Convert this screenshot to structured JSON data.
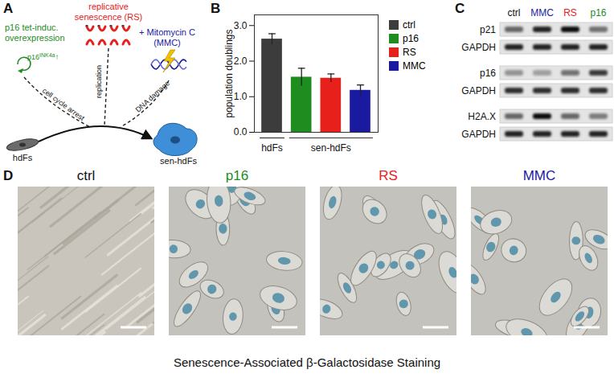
{
  "panel_a": {
    "letter": "A",
    "sources": [
      {
        "lines": [
          "p16 tet-induc.",
          "overexpression"
        ],
        "color": "#1e8c1e"
      },
      {
        "lines": [
          "replicative",
          "senescence (RS)"
        ],
        "color": "#e8201c"
      },
      {
        "lines": [
          "+ Mitomycin C",
          "(MMC)"
        ],
        "color": "#1a1aa0"
      }
    ],
    "gene": {
      "text": "p16",
      "sup": "INK4a",
      "suffix": "↑"
    },
    "paths": [
      "cell cycle arrest",
      "replication",
      "DNA damage"
    ],
    "start": "hdFs",
    "end": "sen-hdFs"
  },
  "chart_data": {
    "letter": "B",
    "type": "bar",
    "categories": [
      "ctrl",
      "p16",
      "RS",
      "MMC"
    ],
    "values": [
      2.62,
      1.55,
      1.52,
      1.18
    ],
    "errors": [
      0.15,
      0.25,
      0.12,
      0.15
    ],
    "colors": [
      "#3c3c3c",
      "#1e8c1e",
      "#e8201c",
      "#1a1aa0"
    ],
    "ylabel": "population doublings",
    "ylim": [
      0,
      3.3
    ],
    "yticks": [
      0,
      1,
      2,
      3
    ],
    "groups": [
      {
        "label": "hdFs",
        "members": [
          "ctrl"
        ]
      },
      {
        "label": "sen-hdFs",
        "members": [
          "p16",
          "RS",
          "MMC"
        ]
      }
    ],
    "legend": "right",
    "tick_labels": "y"
  },
  "panel_c": {
    "letter": "C",
    "columns": [
      {
        "label": "ctrl",
        "color": "#111111"
      },
      {
        "label": "MMC",
        "color": "#1a1aa0"
      },
      {
        "label": "RS",
        "color": "#e8201c"
      },
      {
        "label": "p16",
        "color": "#1e8c1e"
      }
    ],
    "rows": [
      {
        "label": "p21",
        "intensity": [
          0.55,
          0.85,
          0.95,
          0.5
        ]
      },
      {
        "label": "GAPDH",
        "intensity": [
          0.85,
          0.85,
          0.85,
          0.85
        ]
      },
      {
        "label": "p16",
        "intensity": [
          0.35,
          0.3,
          0.5,
          0.75
        ]
      },
      {
        "label": "GAPDH",
        "intensity": [
          0.8,
          0.8,
          0.8,
          0.8
        ]
      },
      {
        "label": "H2A.X",
        "intensity": [
          0.55,
          0.95,
          0.55,
          0.45
        ]
      },
      {
        "label": "GAPDH",
        "intensity": [
          0.85,
          0.85,
          0.85,
          0.85
        ]
      }
    ]
  },
  "panel_d": {
    "letter": "D",
    "images": [
      {
        "title": "ctrl",
        "color": "#111111"
      },
      {
        "title": "p16",
        "color": "#1e8c1e"
      },
      {
        "title": "RS",
        "color": "#e8201c"
      },
      {
        "title": "MMC",
        "color": "#1a1aa0"
      }
    ],
    "caption": "Senescence-Associated β-Galactosidase Staining"
  }
}
